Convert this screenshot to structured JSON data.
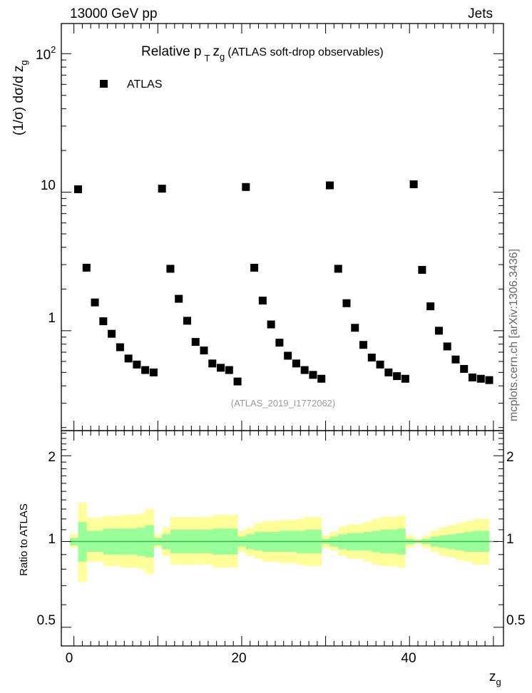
{
  "header": {
    "left": "13000 GeV pp",
    "right": "Jets",
    "side_note": "mcplots.cern.ch [arXiv:1306.3436]"
  },
  "colors": {
    "marker": "#000000",
    "band_outer": "#ffff99",
    "band_inner": "#99ff99",
    "ref_line": "#3cb44b",
    "analysis_id": "#999999"
  },
  "chart_data": [
    {
      "type": "scatter",
      "title": "Relative p_T z_g (ATLAS soft-drop observables)",
      "title_main": "Relative p",
      "title_sub_T": "T",
      "title_z": "z",
      "title_sub_g": "g",
      "title_rest": "(ATLAS soft-drop observables)",
      "ylabel": "(1/σ) dσ/d z",
      "ylabel_sub": "g",
      "y_scale": "log",
      "ylim": [
        0.19,
        165
      ],
      "xlim": [
        -1.5,
        51.2
      ],
      "x_ticks": [
        "0",
        "20",
        "40"
      ],
      "y_ticks": [
        "10",
        "10",
        "1"
      ],
      "y_tick_100_exp": "2",
      "legend": {
        "label": "ATLAS",
        "placement": "top-left"
      },
      "annotation": "(ATLAS_2019_I1772062)",
      "series": [
        {
          "name": "ATLAS",
          "x": [
            0.5,
            1.5,
            2.5,
            3.5,
            4.5,
            5.5,
            6.5,
            7.5,
            8.5,
            9.5,
            10.5,
            11.5,
            12.5,
            13.5,
            14.5,
            15.5,
            16.5,
            17.5,
            18.5,
            19.5,
            20.5,
            21.5,
            22.5,
            23.5,
            24.5,
            25.5,
            26.5,
            27.5,
            28.5,
            29.5,
            30.5,
            31.5,
            32.5,
            33.5,
            34.5,
            35.5,
            36.5,
            37.5,
            38.5,
            39.5,
            40.5,
            41.5,
            42.5,
            43.5,
            44.5,
            45.5,
            46.5,
            47.5,
            48.5,
            49.5
          ],
          "y": [
            10.5,
            2.85,
            1.6,
            1.17,
            0.95,
            0.76,
            0.63,
            0.57,
            0.52,
            0.5,
            10.6,
            2.8,
            1.7,
            1.18,
            0.83,
            0.72,
            0.58,
            0.54,
            0.52,
            0.43,
            10.9,
            2.85,
            1.65,
            1.11,
            0.82,
            0.66,
            0.58,
            0.52,
            0.48,
            0.45,
            11.2,
            2.8,
            1.58,
            1.05,
            0.79,
            0.64,
            0.57,
            0.5,
            0.47,
            0.45,
            11.4,
            2.75,
            1.5,
            1.0,
            0.77,
            0.62,
            0.53,
            0.46,
            0.45,
            0.44
          ]
        }
      ]
    },
    {
      "type": "area",
      "ylabel": "Ratio to ATLAS",
      "xlabel": "z",
      "xlabel_sub": "g",
      "y_scale": "log",
      "ylim": [
        0.43,
        2.45
      ],
      "y_ticks": [
        "2",
        "1",
        "0.5"
      ],
      "x_ticks": [
        "0",
        "20",
        "40"
      ],
      "bins": [
        -0.5,
        0.5,
        1.5,
        2.5,
        3.5,
        4.5,
        5.5,
        6.5,
        7.5,
        8.5,
        9.5,
        10.5,
        11.5,
        12.5,
        13.5,
        14.5,
        15.5,
        16.5,
        17.5,
        18.5,
        19.5,
        20.5,
        21.5,
        22.5,
        23.5,
        24.5,
        25.5,
        26.5,
        27.5,
        28.5,
        29.5,
        30.5,
        31.5,
        32.5,
        33.5,
        34.5,
        35.5,
        36.5,
        37.5,
        38.5,
        39.5,
        40.5,
        41.5,
        42.5,
        43.5,
        44.5,
        45.5,
        46.5,
        47.5,
        48.5,
        49.5,
        50.5
      ],
      "series": [
        {
          "name": "outer",
          "up": [
            1.06,
            1.37,
            1.21,
            1.21,
            1.23,
            1.23,
            1.24,
            1.24,
            1.25,
            1.3,
            1.06,
            1.12,
            1.22,
            1.22,
            1.22,
            1.22,
            1.22,
            1.24,
            1.24,
            1.24,
            1.09,
            1.12,
            1.16,
            1.18,
            1.18,
            1.19,
            1.19,
            1.2,
            1.22,
            1.22,
            1.05,
            1.08,
            1.13,
            1.15,
            1.15,
            1.17,
            1.2,
            1.22,
            1.22,
            1.23,
            1.05,
            1.02,
            1.05,
            1.09,
            1.12,
            1.14,
            1.16,
            1.18,
            1.2,
            1.2
          ],
          "low": [
            0.95,
            0.72,
            0.85,
            0.85,
            0.82,
            0.82,
            0.81,
            0.81,
            0.8,
            0.77,
            0.95,
            0.89,
            0.83,
            0.83,
            0.83,
            0.83,
            0.83,
            0.81,
            0.81,
            0.81,
            0.92,
            0.89,
            0.87,
            0.85,
            0.85,
            0.84,
            0.84,
            0.83,
            0.82,
            0.82,
            0.95,
            0.93,
            0.89,
            0.87,
            0.87,
            0.85,
            0.83,
            0.82,
            0.82,
            0.81,
            0.95,
            0.98,
            0.95,
            0.92,
            0.89,
            0.88,
            0.86,
            0.85,
            0.83,
            0.83
          ]
        },
        {
          "name": "inner",
          "up": [
            1.03,
            1.17,
            1.09,
            1.09,
            1.11,
            1.11,
            1.11,
            1.11,
            1.12,
            1.14,
            1.03,
            1.06,
            1.1,
            1.1,
            1.1,
            1.1,
            1.1,
            1.11,
            1.11,
            1.11,
            1.04,
            1.06,
            1.08,
            1.08,
            1.08,
            1.09,
            1.09,
            1.09,
            1.1,
            1.1,
            1.02,
            1.04,
            1.06,
            1.07,
            1.07,
            1.08,
            1.09,
            1.1,
            1.1,
            1.11,
            1.02,
            1.01,
            1.02,
            1.04,
            1.05,
            1.06,
            1.07,
            1.08,
            1.09,
            1.09
          ],
          "low": [
            0.97,
            0.85,
            0.92,
            0.92,
            0.9,
            0.9,
            0.9,
            0.9,
            0.89,
            0.88,
            0.97,
            0.94,
            0.91,
            0.91,
            0.91,
            0.91,
            0.91,
            0.9,
            0.9,
            0.9,
            0.96,
            0.94,
            0.93,
            0.92,
            0.92,
            0.92,
            0.92,
            0.91,
            0.91,
            0.91,
            0.98,
            0.96,
            0.94,
            0.93,
            0.93,
            0.93,
            0.92,
            0.91,
            0.91,
            0.9,
            0.98,
            0.99,
            0.98,
            0.96,
            0.95,
            0.94,
            0.93,
            0.92,
            0.92,
            0.92
          ]
        }
      ],
      "reference": 1.0
    }
  ]
}
